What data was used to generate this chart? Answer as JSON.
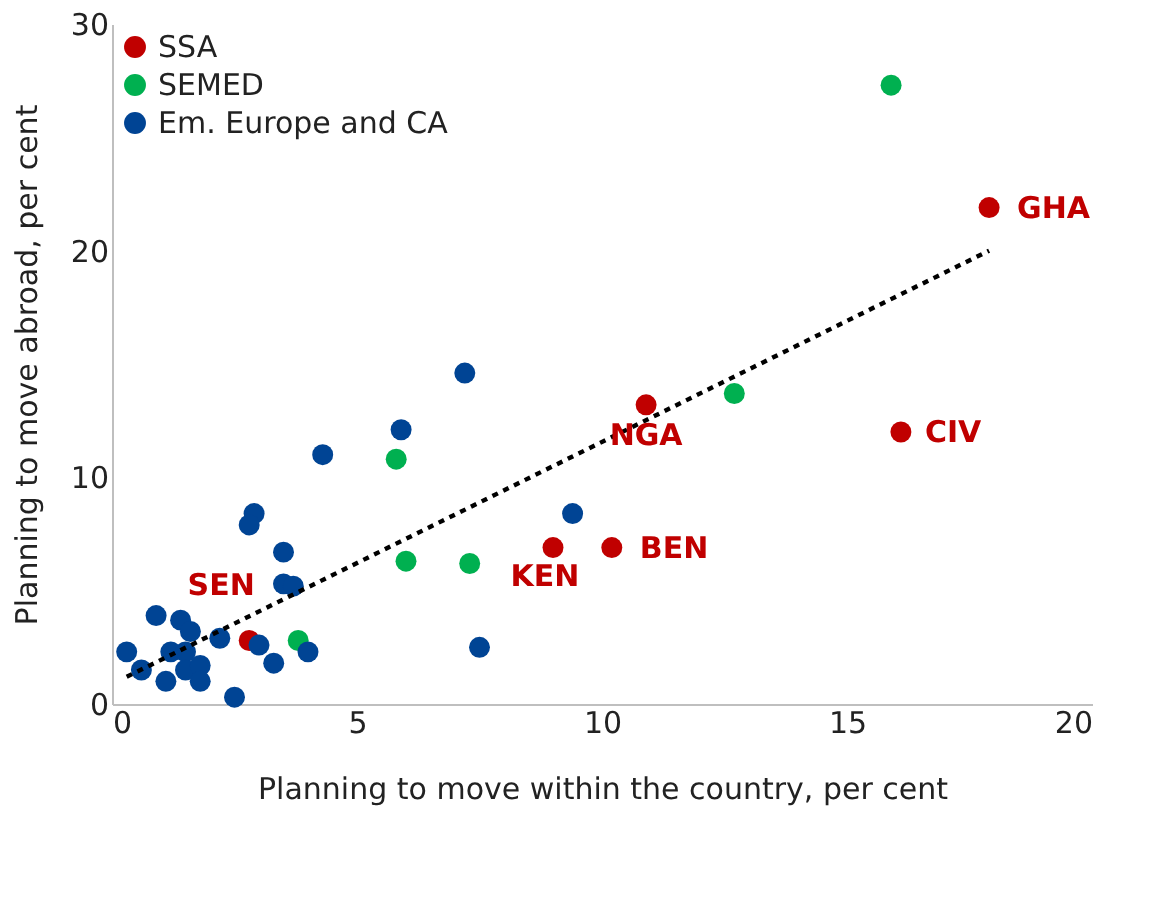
{
  "chart_data": {
    "type": "scatter",
    "xlabel": "Planning to move within the country, per cent",
    "ylabel": "Planning to move abroad, per cent",
    "xlim": [
      0,
      20
    ],
    "ylim": [
      0,
      30
    ],
    "xticks": [
      0,
      5,
      10,
      15,
      20
    ],
    "yticks": [
      0,
      10,
      20,
      30
    ],
    "grid": false,
    "legend": "top left",
    "marker": "circle",
    "series": [
      {
        "name": "SSA",
        "color": "#c00000",
        "x": [
          2.8,
          9.0,
          10.2,
          10.9,
          16.1,
          17.9
        ],
        "values": [
          2.8,
          6.9,
          6.9,
          13.2,
          12.0,
          21.9
        ]
      },
      {
        "name": "SEMED",
        "color": "#00b050",
        "x": [
          15.9,
          12.7,
          5.8,
          6.0,
          7.3,
          3.8
        ],
        "values": [
          27.3,
          13.7,
          10.8,
          6.3,
          6.2,
          2.8
        ]
      },
      {
        "name": "Em. Europe and CA",
        "color": "#004494",
        "x": [
          7.2,
          5.9,
          4.3,
          2.9,
          2.8,
          3.5,
          3.5,
          3.7,
          9.4,
          7.5,
          0.9,
          1.4,
          1.6,
          2.2,
          0.3,
          0.6,
          1.1,
          1.2,
          1.5,
          1.5,
          1.8,
          1.8,
          3.0,
          3.3,
          4.0,
          2.5
        ],
        "values": [
          14.6,
          12.1,
          11.0,
          8.4,
          7.9,
          6.7,
          5.3,
          5.2,
          8.4,
          2.5,
          3.9,
          3.7,
          3.2,
          2.9,
          2.3,
          1.5,
          1.0,
          2.3,
          2.3,
          1.5,
          1.7,
          1.0,
          2.6,
          1.8,
          2.3,
          0.3
        ]
      },
      {
        "type": "line",
        "line_style": "dotted",
        "marker": "none",
        "color": "#000000",
        "x": [
          0.3,
          17.9
        ],
        "values": [
          1.2,
          20.0
        ]
      }
    ],
    "annotations": [
      {
        "text": "SEN",
        "x": 2.8,
        "y": 2.8
      },
      {
        "text": "KEN",
        "x": 9.0,
        "y": 6.9
      },
      {
        "text": "BEN",
        "x": 10.2,
        "y": 6.9
      },
      {
        "text": "NGA",
        "x": 10.9,
        "y": 13.2
      },
      {
        "text": "CIV",
        "x": 16.1,
        "y": 12.0
      },
      {
        "text": "GHA",
        "x": 17.9,
        "y": 21.9
      }
    ]
  }
}
